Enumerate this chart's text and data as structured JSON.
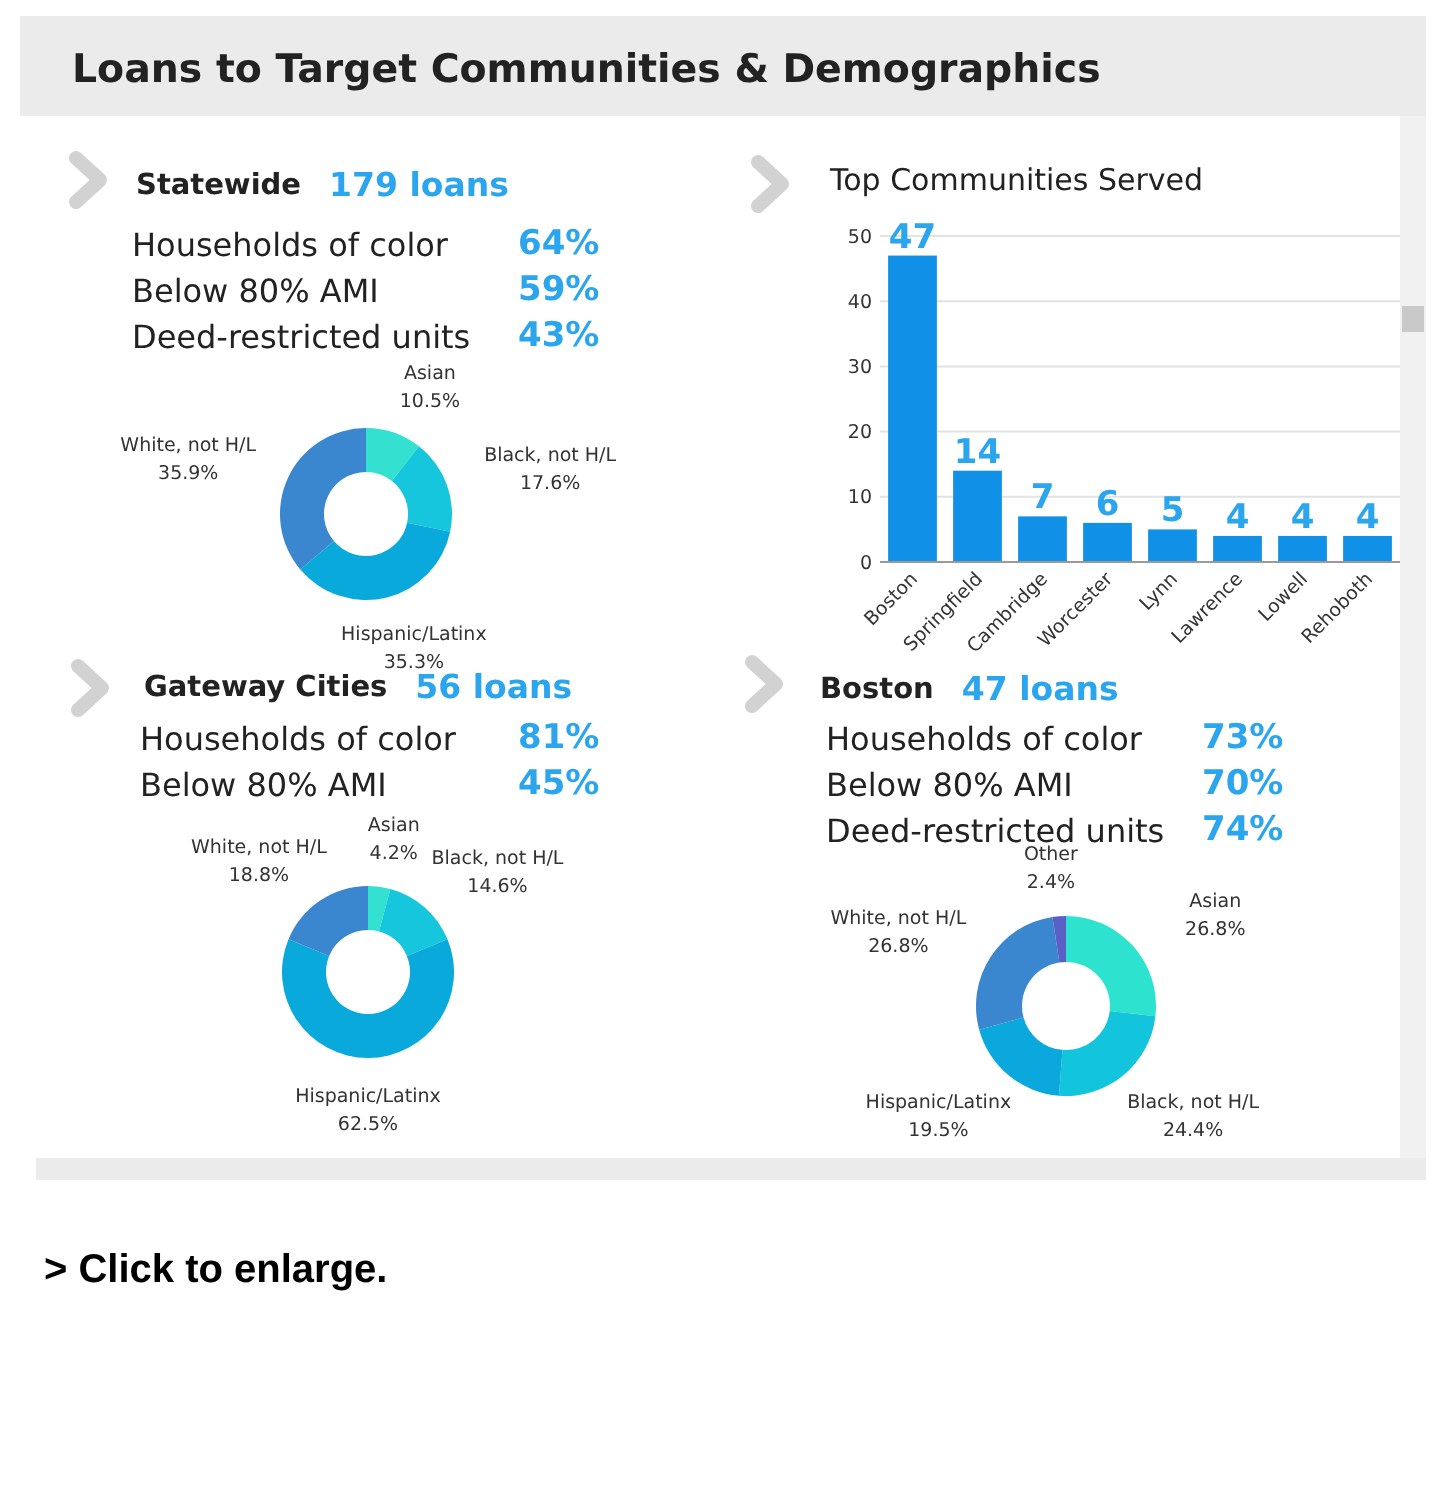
{
  "chart_data": [
    {
      "type": "other",
      "title": "Loans to Target Communities & Demographics",
      "annotations": [
        "> Click to enlarge."
      ]
    },
    {
      "type": "other",
      "title": "Statewide",
      "subtitle": "179 loans",
      "categories": [
        "Households of color",
        "Below 80% AMI",
        "Deed-restricted units"
      ],
      "value_labels": [
        "64%",
        "59%",
        "43%"
      ]
    },
    {
      "type": "donut",
      "categories": [
        "Asian",
        "Black, not H/L",
        "Hispanic/Latinx",
        "White, not H/L"
      ],
      "values": [
        10.5,
        17.6,
        35.3,
        35.9
      ],
      "colors": [
        "#34e0cf",
        "#16c6dc",
        "#0aa9dc",
        "#3a86cf"
      ],
      "value_labels": [
        "10.5%",
        "17.6%",
        "35.3%",
        "35.9%"
      ]
    },
    {
      "type": "bar",
      "title": "Top Communities Served",
      "categories": [
        "Boston",
        "Springfield",
        "Cambridge",
        "Worcester",
        "Lynn",
        "Lawrence",
        "Lowell",
        "Rehoboth"
      ],
      "values": [
        47,
        14,
        7,
        6,
        5,
        4,
        4,
        4
      ],
      "color": "#1190e8",
      "ylim": [
        0,
        50
      ],
      "yticks": [
        0,
        10,
        20,
        30,
        40,
        50
      ],
      "grid": "y",
      "data_labels": true
    },
    {
      "type": "other",
      "title": "Gateway Cities",
      "subtitle": "56 loans",
      "categories": [
        "Households of color",
        "Below 80% AMI"
      ],
      "value_labels": [
        "81%",
        "45%"
      ]
    },
    {
      "type": "donut",
      "categories": [
        "Asian",
        "Black, not H/L",
        "Hispanic/Latinx",
        "White, not H/L"
      ],
      "values": [
        4.2,
        14.6,
        62.5,
        18.8
      ],
      "colors": [
        "#34e0cf",
        "#16c6dc",
        "#0aa9dc",
        "#3a86cf"
      ],
      "value_labels": [
        "4.2%",
        "14.6%",
        "62.5%",
        "18.8%"
      ]
    },
    {
      "type": "other",
      "title": "Boston",
      "subtitle": "47 loans",
      "categories": [
        "Households of color",
        "Below 80% AMI",
        "Deed-restricted units"
      ],
      "value_labels": [
        "73%",
        "70%",
        "74%"
      ]
    },
    {
      "type": "donut",
      "categories": [
        "Asian",
        "Black, not H/L",
        "Hispanic/Latinx",
        "White, not H/L",
        "Other"
      ],
      "values": [
        26.8,
        24.4,
        19.5,
        26.8,
        2.4
      ],
      "colors": [
        "#2de3cf",
        "#12c5dc",
        "#0aa8dc",
        "#3a86cf",
        "#5a5fc5"
      ],
      "value_labels": [
        "26.8%",
        "24.4%",
        "19.5%",
        "26.8%",
        "2.4%"
      ]
    }
  ]
}
